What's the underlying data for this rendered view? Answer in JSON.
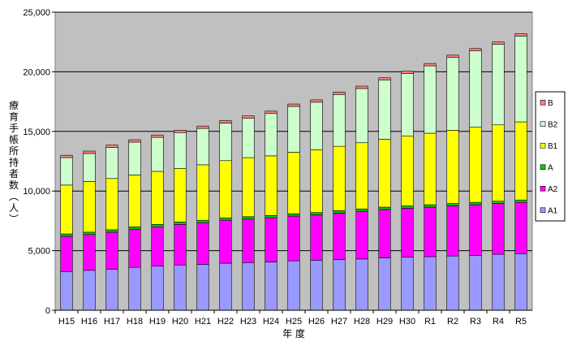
{
  "chart_data": {
    "type": "bar",
    "stacked": true,
    "title": "",
    "xlabel": "年 度",
    "ylabel_chars": [
      "療",
      "育",
      "手",
      "帳",
      "所",
      "持",
      "者",
      "数",
      "︵",
      "人",
      "︶"
    ],
    "ylim": [
      0,
      25000
    ],
    "yticks": [
      "0",
      "5,000",
      "10,000",
      "15,000",
      "20,000",
      "25,000"
    ],
    "ytick_values": [
      0,
      5000,
      10000,
      15000,
      20000,
      25000
    ],
    "grid": true,
    "legend_position": "right",
    "plot_background": "#C0C0C0",
    "categories": [
      "H15",
      "H16",
      "H17",
      "H18",
      "H19",
      "H20",
      "H21",
      "H22",
      "H23",
      "H24",
      "H25",
      "H26",
      "H27",
      "H28",
      "H29",
      "H30",
      "R1",
      "R2",
      "R3",
      "R4",
      "R5"
    ],
    "series": [
      {
        "name": "A1",
        "color": "#9999FF",
        "values": [
          3250,
          3350,
          3450,
          3600,
          3700,
          3800,
          3850,
          3950,
          4000,
          4050,
          4150,
          4200,
          4250,
          4300,
          4400,
          4450,
          4500,
          4550,
          4600,
          4700,
          4750
        ]
      },
      {
        "name": "A2",
        "color": "#FF00FF",
        "values": [
          2950,
          3000,
          3100,
          3200,
          3300,
          3400,
          3500,
          3600,
          3650,
          3700,
          3750,
          3800,
          3900,
          4000,
          4050,
          4100,
          4150,
          4200,
          4250,
          4250,
          4300
        ]
      },
      {
        "name": "A",
        "color": "#00CC00",
        "values": [
          200,
          200,
          200,
          200,
          200,
          200,
          200,
          200,
          200,
          200,
          200,
          200,
          200,
          200,
          200,
          200,
          200,
          200,
          200,
          200,
          200
        ]
      },
      {
        "name": "B1",
        "color": "#FFFF00",
        "values": [
          4100,
          4250,
          4300,
          4350,
          4450,
          4500,
          4650,
          4800,
          4950,
          5000,
          5150,
          5250,
          5400,
          5550,
          5700,
          5850,
          6000,
          6150,
          6300,
          6400,
          6550
        ]
      },
      {
        "name": "B2",
        "color": "#CCFFCC",
        "values": [
          2300,
          2350,
          2600,
          2750,
          2850,
          3000,
          3050,
          3150,
          3300,
          3550,
          3850,
          4000,
          4350,
          4550,
          4950,
          5250,
          5650,
          6100,
          6400,
          6750,
          7200
        ]
      },
      {
        "name": "B",
        "color": "#FF8080",
        "values": [
          200,
          200,
          200,
          200,
          200,
          200,
          200,
          200,
          200,
          200,
          200,
          200,
          200,
          200,
          200,
          200,
          200,
          200,
          200,
          200,
          200
        ]
      }
    ]
  }
}
